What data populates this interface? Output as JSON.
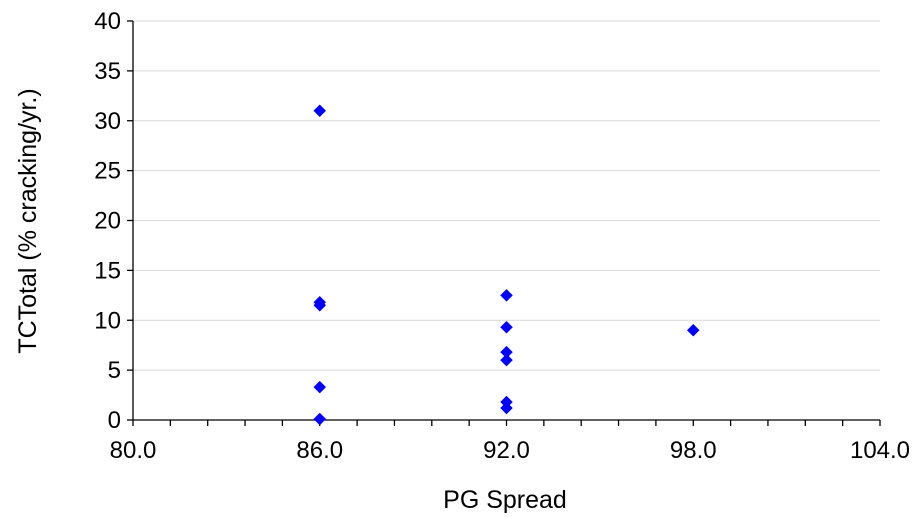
{
  "chart_data": {
    "type": "scatter",
    "title": "",
    "xlabel": "PG Spread",
    "ylabel": "TCTotal (% cracking/yr.)",
    "xlim": [
      80,
      104
    ],
    "ylim": [
      0,
      40
    ],
    "x_ticks": [
      80,
      86,
      92,
      98,
      104
    ],
    "x_tick_labels": [
      "80.0",
      "86.0",
      "92.0",
      "98.0",
      "104.0"
    ],
    "x_minor_step": 1.2,
    "y_ticks": [
      0,
      5,
      10,
      15,
      20,
      25,
      30,
      35,
      40
    ],
    "y_tick_labels": [
      "0",
      "5",
      "10",
      "15",
      "20",
      "25",
      "30",
      "35",
      "40"
    ],
    "grid": "horizontal major gridlines",
    "legend": "none",
    "marker": "diamond",
    "marker_color": "#0000FF",
    "series": [
      {
        "points": [
          {
            "x": 86,
            "y": 31.0
          },
          {
            "x": 86,
            "y": 11.8
          },
          {
            "x": 86,
            "y": 11.5
          },
          {
            "x": 86,
            "y": 3.3
          },
          {
            "x": 86,
            "y": 0.1
          },
          {
            "x": 92,
            "y": 12.5
          },
          {
            "x": 92,
            "y": 9.3
          },
          {
            "x": 92,
            "y": 6.8
          },
          {
            "x": 92,
            "y": 6.0
          },
          {
            "x": 92,
            "y": 1.8
          },
          {
            "x": 92,
            "y": 1.2
          },
          {
            "x": 98,
            "y": 9.0
          }
        ]
      }
    ]
  }
}
